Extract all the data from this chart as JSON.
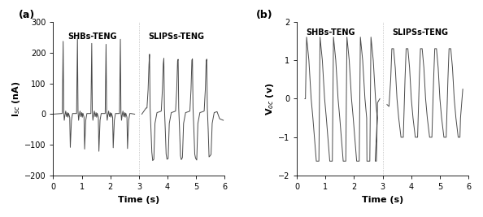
{
  "fig_width": 5.94,
  "fig_height": 2.67,
  "dpi": 100,
  "panel_a": {
    "label": "(a)",
    "ylabel": "I$_{sc}$ (nA)",
    "xlabel": "Time (s)",
    "xlim": [
      0,
      6
    ],
    "ylim": [
      -200,
      300
    ],
    "yticks": [
      -200,
      -100,
      0,
      100,
      200,
      300
    ],
    "xticks": [
      0,
      1,
      2,
      3,
      4,
      5,
      6
    ],
    "divider_x": 3.0,
    "label_shbs": "SHBs-TENG",
    "label_slips": "SLIPSs-TENG",
    "line_color": "#4a4a4a",
    "line_width": 0.7
  },
  "panel_b": {
    "label": "(b)",
    "ylabel": "V$_{oc}$ (v)",
    "xlabel": "Time (s)",
    "xlim": [
      0,
      6
    ],
    "ylim": [
      -2,
      2
    ],
    "yticks": [
      -2,
      -1,
      0,
      1,
      2
    ],
    "xticks": [
      0,
      1,
      2,
      3,
      4,
      5,
      6
    ],
    "divider_x": 3.0,
    "label_shbs": "SHBs-TENG",
    "label_slips": "SLIPSs-TENG",
    "line_color": "#4a4a4a",
    "line_width": 0.7
  },
  "font_size_label": 8,
  "font_size_tick": 7,
  "font_size_annot": 7,
  "font_size_panel": 9
}
